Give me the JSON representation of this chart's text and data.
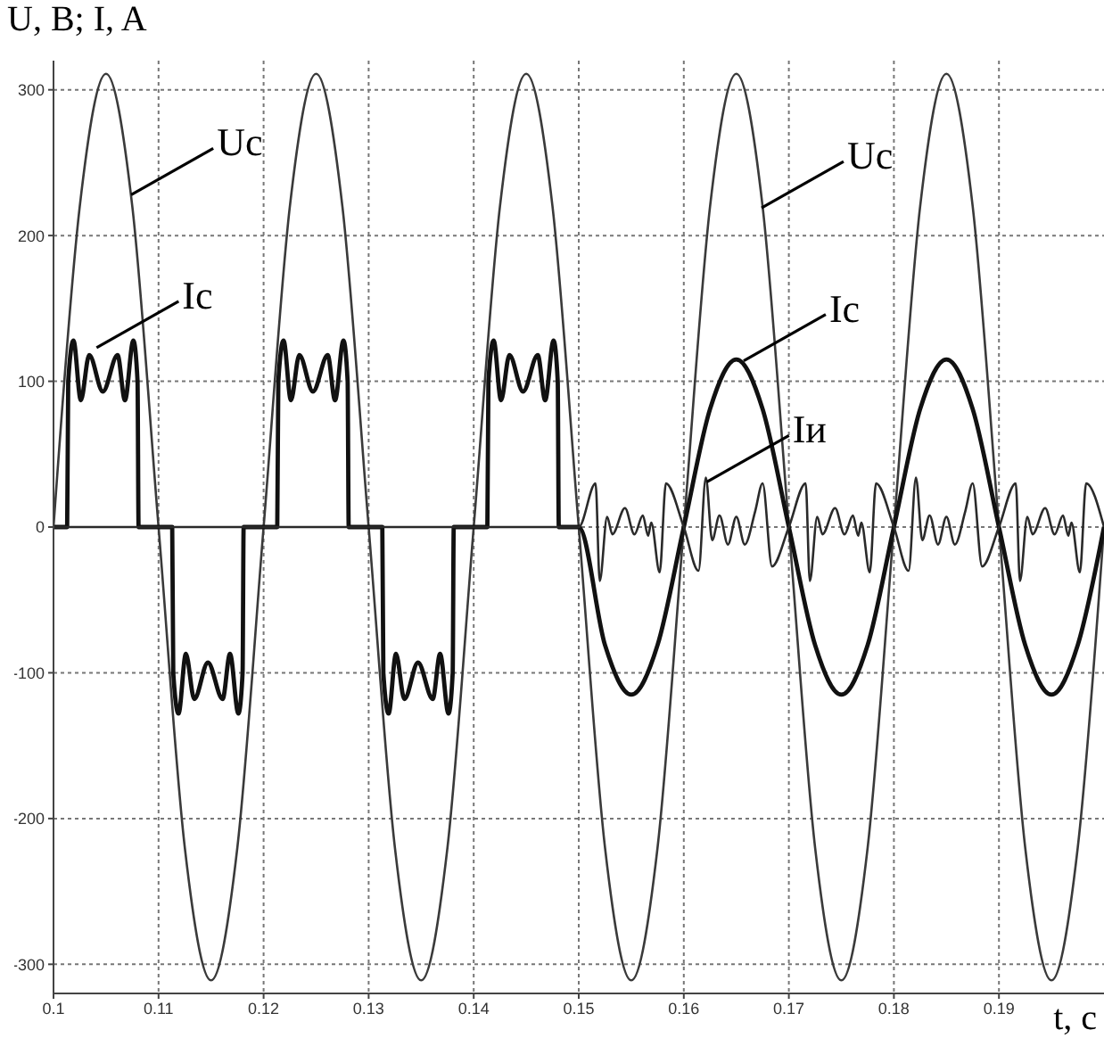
{
  "chart_data": {
    "type": "line",
    "xlabel": "t, c",
    "ylabel": "U, B; I, A",
    "xlim": [
      0.1,
      0.2
    ],
    "xticks": [
      0.1,
      0.11,
      0.12,
      0.13,
      0.14,
      0.15,
      0.16,
      0.17,
      0.18,
      0.19
    ],
    "ylim": [
      -320,
      320
    ],
    "yticks": [
      -300,
      -200,
      -100,
      0,
      100,
      200,
      300
    ],
    "grid": true,
    "marker": "none",
    "line_style": "solid",
    "series": [
      {
        "color": "#3a3a3a",
        "x": [
          0.1,
          0.1025,
          0.105,
          0.1075,
          0.11,
          0.1125,
          0.115,
          0.1175,
          0.12,
          0.1225,
          0.125,
          0.1275,
          0.13,
          0.1325,
          0.135,
          0.1375,
          0.14,
          0.1425,
          0.145,
          0.1475,
          0.15,
          0.1525,
          0.155,
          0.1575,
          0.16,
          0.1625,
          0.165,
          0.1675,
          0.17,
          0.1725,
          0.175,
          0.1775,
          0.18,
          0.1825,
          0.185,
          0.1875,
          0.19,
          0.1925,
          0.195,
          0.1975,
          0.2
        ],
        "values": [
          0,
          220,
          311,
          220,
          0,
          -220,
          -311,
          -220,
          0,
          220,
          311,
          220,
          0,
          -220,
          -311,
          -220,
          0,
          220,
          311,
          220,
          0,
          -220,
          -311,
          -220,
          0,
          220,
          311,
          220,
          0,
          -220,
          -311,
          -220,
          0,
          220,
          311,
          220,
          0,
          -220,
          -311,
          -220,
          0
        ]
      },
      {
        "color": "#111111",
        "x": [
          0.1,
          0.1013,
          0.1014,
          0.1019,
          0.1026,
          0.1034,
          0.1047,
          0.1061,
          0.1068,
          0.1076,
          0.108,
          0.1081,
          0.1113,
          0.1114,
          0.1119,
          0.1126,
          0.1134,
          0.1147,
          0.1161,
          0.1168,
          0.1176,
          0.118,
          0.1181,
          0.1213,
          0.1214,
          0.1219,
          0.1226,
          0.1234,
          0.1247,
          0.1261,
          0.1268,
          0.1276,
          0.128,
          0.1281,
          0.1313,
          0.1314,
          0.1319,
          0.1326,
          0.1334,
          0.1347,
          0.1361,
          0.1368,
          0.1376,
          0.138,
          0.1381,
          0.1413,
          0.1414,
          0.1419,
          0.1426,
          0.1434,
          0.1447,
          0.1461,
          0.1468,
          0.1476,
          0.148,
          0.1481,
          0.15,
          0.1525,
          0.155,
          0.1575,
          0.16,
          0.1625,
          0.165,
          0.1675,
          0.17,
          0.1725,
          0.175,
          0.1775,
          0.18,
          0.1825,
          0.185,
          0.1875,
          0.19,
          0.1925,
          0.195,
          0.1975,
          0.2
        ],
        "values": [
          0,
          0,
          100,
          128,
          87,
          118,
          93,
          118,
          87,
          128,
          100,
          0,
          0,
          -100,
          -128,
          -87,
          -118,
          -93,
          -118,
          -87,
          -128,
          -100,
          0,
          0,
          100,
          128,
          87,
          118,
          93,
          118,
          87,
          128,
          100,
          0,
          0,
          -100,
          -128,
          -87,
          -118,
          -93,
          -118,
          -87,
          -128,
          -100,
          0,
          0,
          100,
          128,
          87,
          118,
          93,
          118,
          87,
          128,
          100,
          0,
          0,
          -81,
          -115,
          -81,
          0,
          81,
          115,
          81,
          0,
          -81,
          -115,
          -81,
          0,
          81,
          115,
          81,
          0,
          -81,
          -115,
          -81,
          0
        ]
      },
      {
        "color": "#2a2a2a",
        "x": [
          0.1,
          0.15,
          0.1516,
          0.152,
          0.1527,
          0.1532,
          0.1544,
          0.1553,
          0.1561,
          0.1566,
          0.1569,
          0.1577,
          0.1583,
          0.16,
          0.1614,
          0.1621,
          0.1627,
          0.1634,
          0.1642,
          0.165,
          0.1658,
          0.1668,
          0.1675,
          0.1684,
          0.17,
          0.1716,
          0.172,
          0.1727,
          0.1732,
          0.1744,
          0.1753,
          0.1761,
          0.1766,
          0.1769,
          0.1777,
          0.1783,
          0.18,
          0.1814,
          0.1821,
          0.1827,
          0.1834,
          0.1842,
          0.185,
          0.1858,
          0.1868,
          0.1875,
          0.1884,
          0.19,
          0.1916,
          0.192,
          0.1927,
          0.1932,
          0.1944,
          0.1953,
          0.1961,
          0.1966,
          0.1969,
          0.1977,
          0.1983,
          0.2
        ],
        "values": [
          0,
          0,
          30,
          -37,
          7,
          -5,
          13,
          -5,
          8,
          -6,
          3,
          -31,
          30,
          0,
          -30,
          34,
          -9,
          8,
          -12,
          7,
          -12,
          11,
          30,
          -27,
          0,
          30,
          -37,
          7,
          -5,
          13,
          -5,
          8,
          -6,
          3,
          -31,
          30,
          0,
          -30,
          34,
          -9,
          8,
          -12,
          7,
          -12,
          11,
          30,
          -27,
          0,
          30,
          -37,
          7,
          -5,
          13,
          -5,
          8,
          -6,
          3,
          -31,
          30,
          0
        ]
      }
    ],
    "annotations": [
      {
        "text": "Uc",
        "x": 0.1074,
        "y": 228
      },
      {
        "text": "Ic",
        "x": 0.1041,
        "y": 123
      },
      {
        "text": "Uc",
        "x": 0.1674,
        "y": 219
      },
      {
        "text": "Ic",
        "x": 0.1657,
        "y": 114
      },
      {
        "text": "Iи",
        "x": 0.1622,
        "y": 31
      }
    ]
  }
}
